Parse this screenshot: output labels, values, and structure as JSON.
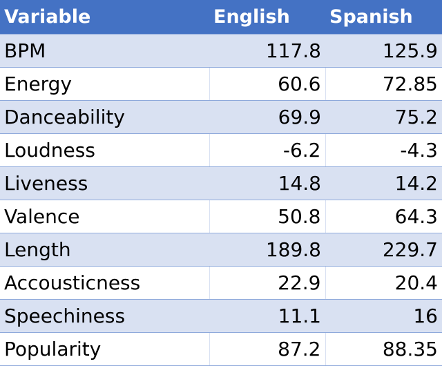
{
  "table": {
    "headers": [
      "Variable",
      "English",
      "Spanish"
    ],
    "rows": [
      {
        "variable": "BPM",
        "english": "117.8",
        "spanish": "125.9"
      },
      {
        "variable": "Energy",
        "english": "60.6",
        "spanish": "72.85"
      },
      {
        "variable": "Danceability",
        "english": "69.9",
        "spanish": "75.2"
      },
      {
        "variable": "Loudness",
        "english": "-6.2",
        "spanish": "-4.3"
      },
      {
        "variable": "Liveness",
        "english": "14.8",
        "spanish": "14.2"
      },
      {
        "variable": "Valence",
        "english": "50.8",
        "spanish": "64.3"
      },
      {
        "variable": "Length",
        "english": "189.8",
        "spanish": "229.7"
      },
      {
        "variable": "Accousticness",
        "english": "22.9",
        "spanish": "20.4"
      },
      {
        "variable": "Speechiness",
        "english": "11.1",
        "spanish": "16"
      },
      {
        "variable": "Popularity",
        "english": "87.2",
        "spanish": "88.35"
      }
    ]
  },
  "colors": {
    "header_bg": "#4472c4",
    "header_text": "#ffffff",
    "band_row": "#d9e1f2",
    "plain_row": "#ffffff",
    "row_border": "#8ea9db"
  }
}
